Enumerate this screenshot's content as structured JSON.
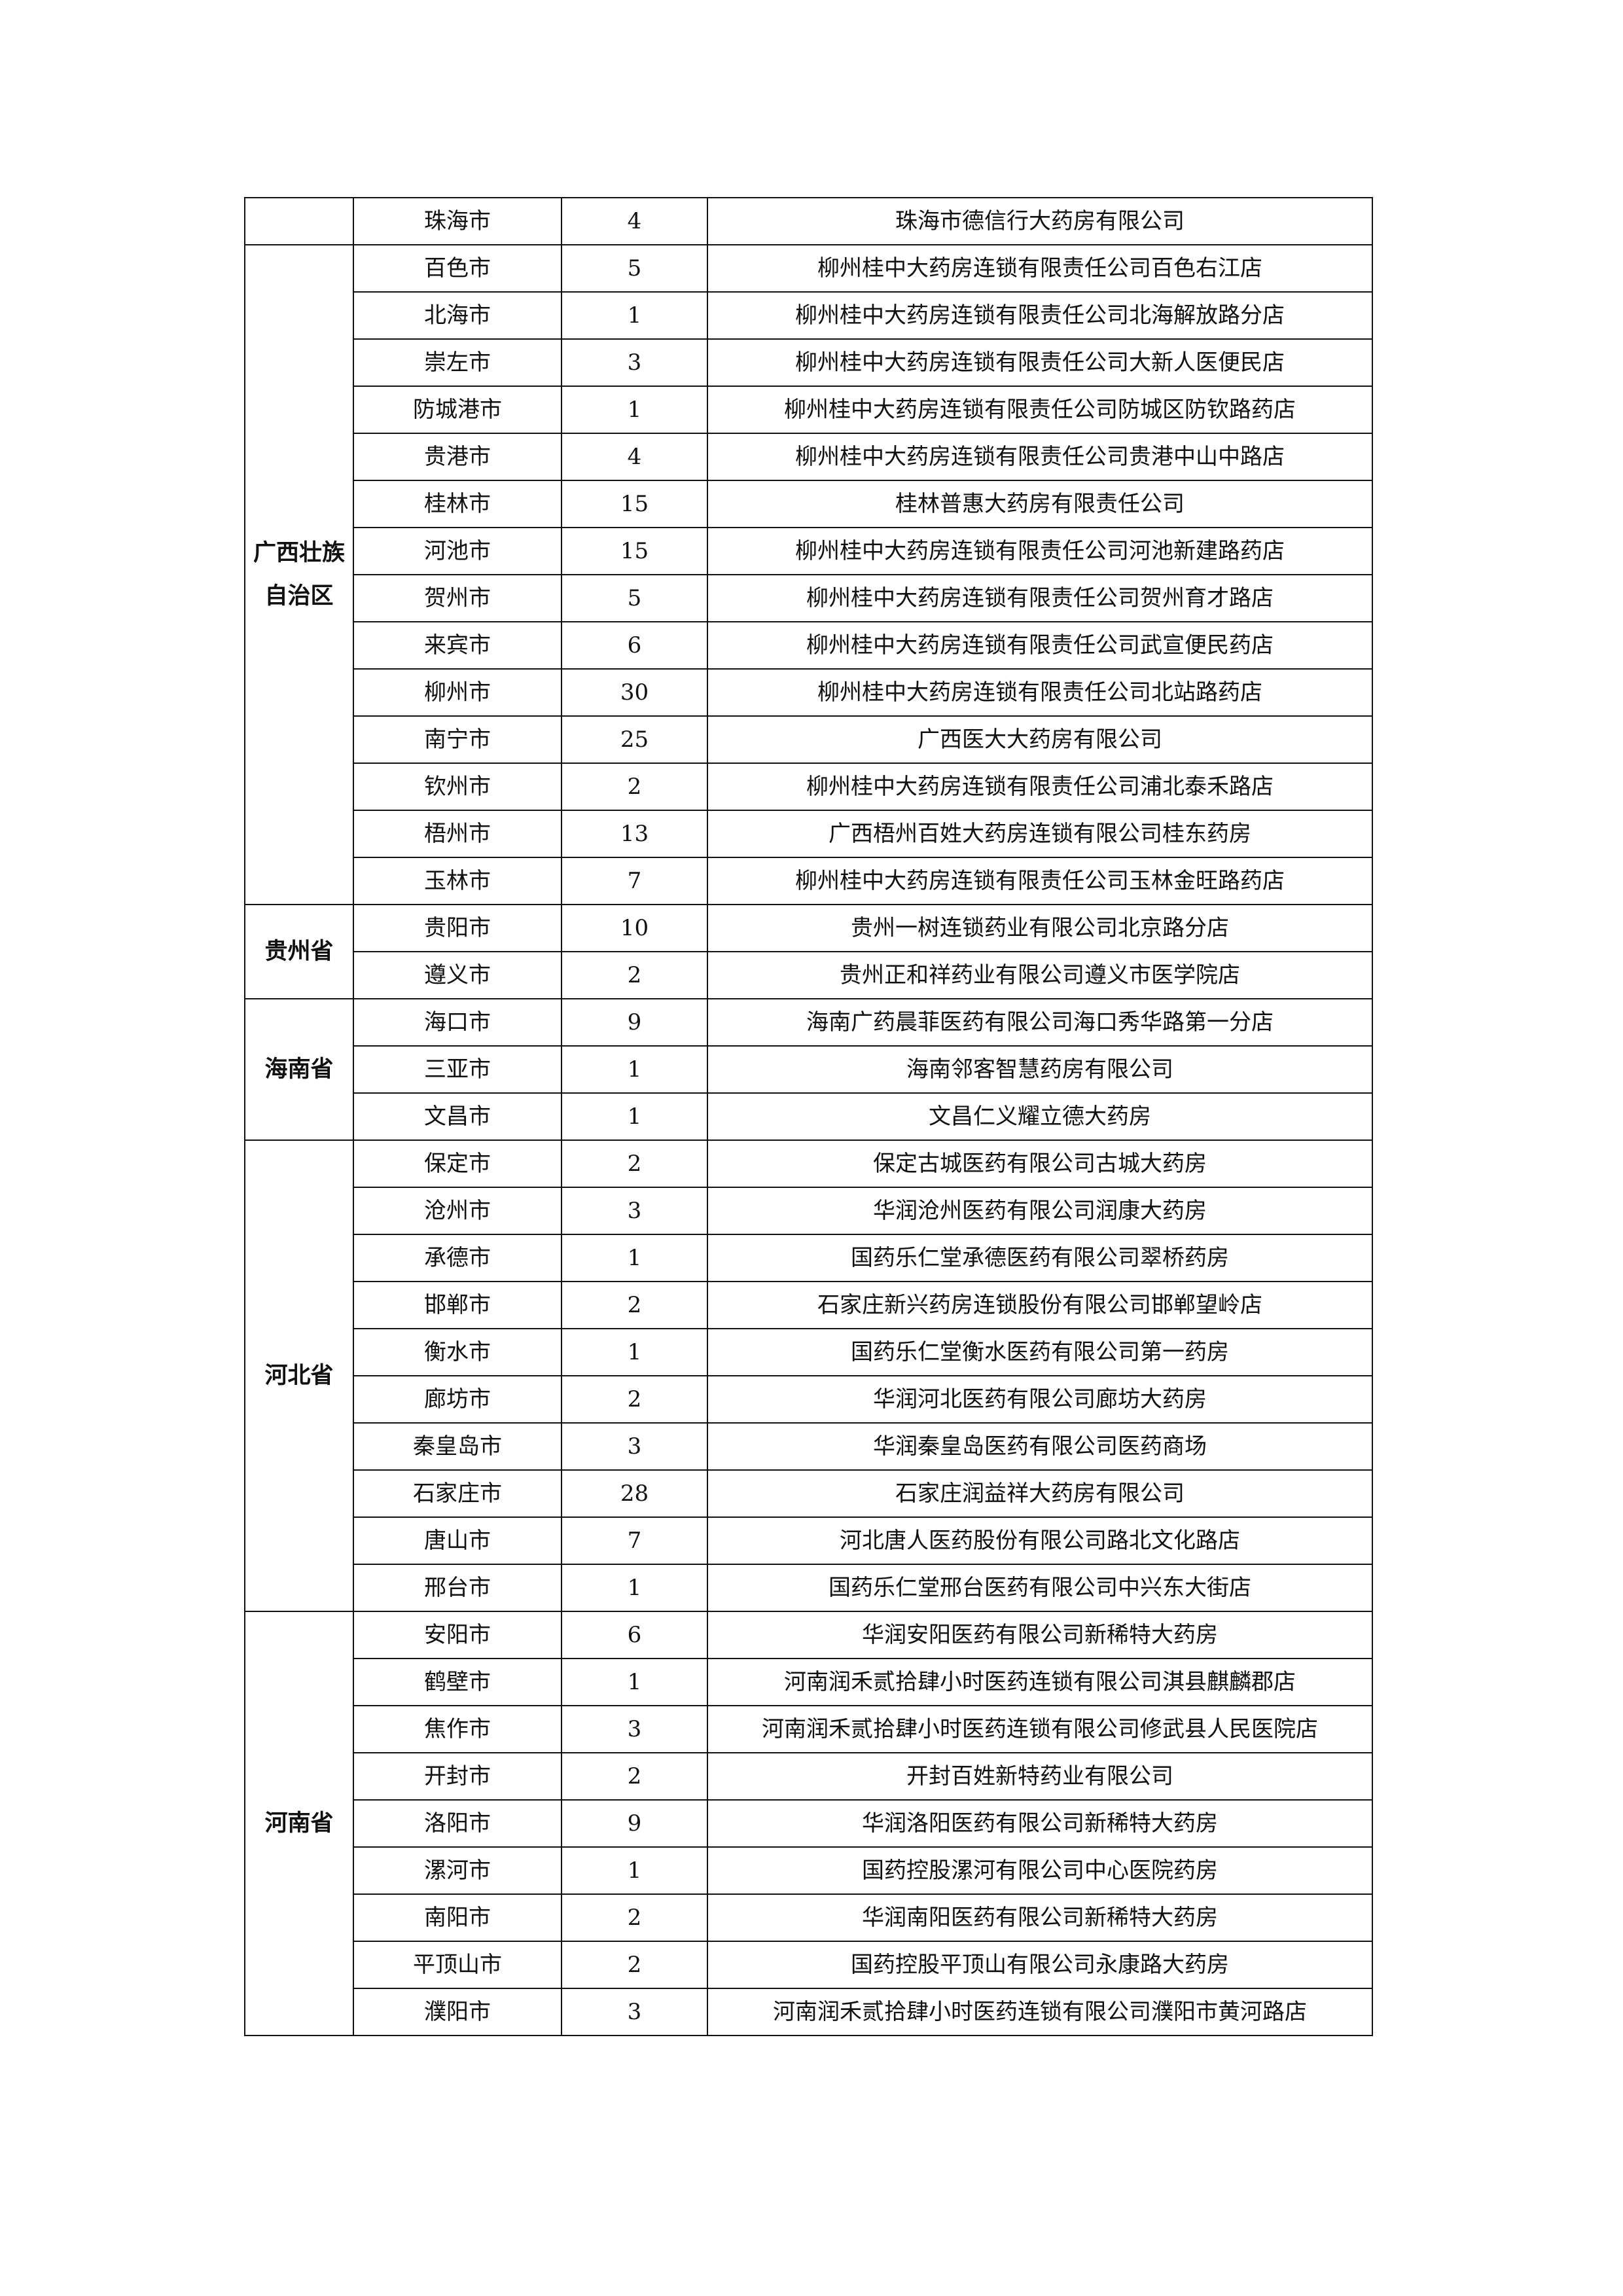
{
  "groups": [
    {
      "province": "",
      "rows": [
        {
          "city": "珠海市",
          "count": "4",
          "store": "珠海市德信行大药房有限公司"
        }
      ]
    },
    {
      "province": "广西壮族自治区",
      "province_lines": [
        "广西壮族",
        "自治区"
      ],
      "rows": [
        {
          "city": "百色市",
          "count": "5",
          "store": "柳州桂中大药房连锁有限责任公司百色右江店"
        },
        {
          "city": "北海市",
          "count": "1",
          "store": "柳州桂中大药房连锁有限责任公司北海解放路分店"
        },
        {
          "city": "崇左市",
          "count": "3",
          "store": "柳州桂中大药房连锁有限责任公司大新人医便民店"
        },
        {
          "city": "防城港市",
          "count": "1",
          "store": "柳州桂中大药房连锁有限责任公司防城区防钦路药店"
        },
        {
          "city": "贵港市",
          "count": "4",
          "store": "柳州桂中大药房连锁有限责任公司贵港中山中路店"
        },
        {
          "city": "桂林市",
          "count": "15",
          "store": "桂林普惠大药房有限责任公司"
        },
        {
          "city": "河池市",
          "count": "15",
          "store": "柳州桂中大药房连锁有限责任公司河池新建路药店"
        },
        {
          "city": "贺州市",
          "count": "5",
          "store": "柳州桂中大药房连锁有限责任公司贺州育才路店"
        },
        {
          "city": "来宾市",
          "count": "6",
          "store": "柳州桂中大药房连锁有限责任公司武宣便民药店"
        },
        {
          "city": "柳州市",
          "count": "30",
          "store": "柳州桂中大药房连锁有限责任公司北站路药店"
        },
        {
          "city": "南宁市",
          "count": "25",
          "store": "广西医大大药房有限公司"
        },
        {
          "city": "钦州市",
          "count": "2",
          "store": "柳州桂中大药房连锁有限责任公司浦北泰禾路店"
        },
        {
          "city": "梧州市",
          "count": "13",
          "store": "广西梧州百姓大药房连锁有限公司桂东药房"
        },
        {
          "city": "玉林市",
          "count": "7",
          "store": "柳州桂中大药房连锁有限责任公司玉林金旺路药店"
        }
      ]
    },
    {
      "province": "贵州省",
      "rows": [
        {
          "city": "贵阳市",
          "count": "10",
          "store": "贵州一树连锁药业有限公司北京路分店"
        },
        {
          "city": "遵义市",
          "count": "2",
          "store": "贵州正和祥药业有限公司遵义市医学院店"
        }
      ]
    },
    {
      "province": "海南省",
      "rows": [
        {
          "city": "海口市",
          "count": "9",
          "store": "海南广药晨菲医药有限公司海口秀华路第一分店"
        },
        {
          "city": "三亚市",
          "count": "1",
          "store": "海南邻客智慧药房有限公司"
        },
        {
          "city": "文昌市",
          "count": "1",
          "store": "文昌仁义耀立德大药房"
        }
      ]
    },
    {
      "province": "河北省",
      "rows": [
        {
          "city": "保定市",
          "count": "2",
          "store": "保定古城医药有限公司古城大药房"
        },
        {
          "city": "沧州市",
          "count": "3",
          "store": "华润沧州医药有限公司润康大药房"
        },
        {
          "city": "承德市",
          "count": "1",
          "store": "国药乐仁堂承德医药有限公司翠桥药房"
        },
        {
          "city": "邯郸市",
          "count": "2",
          "store": "石家庄新兴药房连锁股份有限公司邯郸望岭店"
        },
        {
          "city": "衡水市",
          "count": "1",
          "store": "国药乐仁堂衡水医药有限公司第一药房"
        },
        {
          "city": "廊坊市",
          "count": "2",
          "store": "华润河北医药有限公司廊坊大药房"
        },
        {
          "city": "秦皇岛市",
          "count": "3",
          "store": "华润秦皇岛医药有限公司医药商场"
        },
        {
          "city": "石家庄市",
          "count": "28",
          "store": "石家庄润益祥大药房有限公司"
        },
        {
          "city": "唐山市",
          "count": "7",
          "store": "河北唐人医药股份有限公司路北文化路店"
        },
        {
          "city": "邢台市",
          "count": "1",
          "store": "国药乐仁堂邢台医药有限公司中兴东大街店"
        }
      ]
    },
    {
      "province": "河南省",
      "rows": [
        {
          "city": "安阳市",
          "count": "6",
          "store": "华润安阳医药有限公司新稀特大药房"
        },
        {
          "city": "鹤壁市",
          "count": "1",
          "store": "河南润禾贰拾肆小时医药连锁有限公司淇县麒麟郡店"
        },
        {
          "city": "焦作市",
          "count": "3",
          "store": "河南润禾贰拾肆小时医药连锁有限公司修武县人民医院店"
        },
        {
          "city": "开封市",
          "count": "2",
          "store": "开封百姓新特药业有限公司"
        },
        {
          "city": "洛阳市",
          "count": "9",
          "store": "华润洛阳医药有限公司新稀特大药房"
        },
        {
          "city": "漯河市",
          "count": "1",
          "store": "国药控股漯河有限公司中心医院药房"
        },
        {
          "city": "南阳市",
          "count": "2",
          "store": "华润南阳医药有限公司新稀特大药房"
        },
        {
          "city": "平顶山市",
          "count": "2",
          "store": "国药控股平顶山有限公司永康路大药房"
        },
        {
          "city": "濮阳市",
          "count": "3",
          "store": "河南润禾贰拾肆小时医药连锁有限公司濮阳市黄河路店"
        }
      ]
    }
  ]
}
